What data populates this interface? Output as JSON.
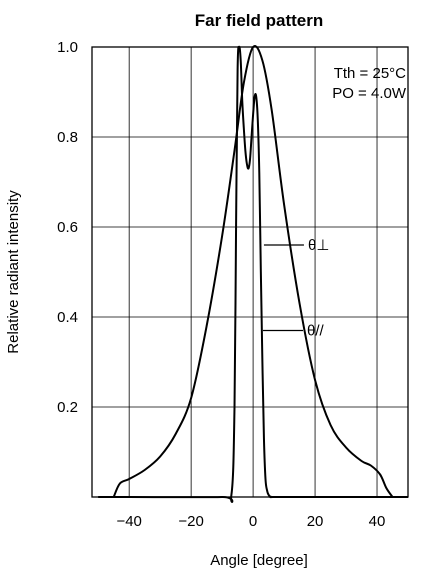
{
  "chart_data": {
    "type": "line",
    "title": "Far field pattern",
    "xlabel": "Angle [degree]",
    "ylabel": "Relative radiant intensity",
    "xlim": [
      -52,
      50
    ],
    "ylim": [
      0,
      1.0
    ],
    "xticks": [
      -40,
      -20,
      0,
      20,
      40
    ],
    "xtick_labels": [
      "−40",
      "−20",
      "0",
      "20",
      "40"
    ],
    "yticks": [
      0.2,
      0.4,
      0.6,
      0.8,
      1.0
    ],
    "ytick_labels": [
      "0.2",
      "0.4",
      "0.6",
      "0.8",
      "1.0"
    ],
    "grid": true,
    "annotations": [
      "Tth = 25°C",
      "PO = 4.0W"
    ],
    "series": [
      {
        "name": "θ⊥",
        "label_at": {
          "x": 3.5,
          "y": 0.56
        },
        "x": [
          -45,
          -43,
          -40,
          -35,
          -30,
          -25,
          -20,
          -15,
          -10,
          -6,
          -3,
          0,
          3,
          6,
          10,
          15,
          20,
          25,
          30,
          35,
          38,
          41,
          43,
          45
        ],
        "y": [
          0.0,
          0.03,
          0.04,
          0.06,
          0.09,
          0.14,
          0.22,
          0.38,
          0.58,
          0.77,
          0.92,
          1.0,
          0.97,
          0.86,
          0.65,
          0.43,
          0.26,
          0.16,
          0.11,
          0.08,
          0.07,
          0.05,
          0.02,
          0.0
        ]
      },
      {
        "name": "θ//",
        "label_at": {
          "x": 3.2,
          "y": 0.37
        },
        "x": [
          -50,
          -40,
          -10,
          -7,
          -6,
          -5.5,
          -5,
          -4.5,
          -4,
          -3.5,
          -3,
          -2.5,
          -2,
          -1.5,
          -1,
          -0.5,
          0,
          0.5,
          1,
          1.5,
          2,
          2.5,
          3,
          3.5,
          4,
          4.5,
          5,
          6,
          10,
          50
        ],
        "y": [
          0.0,
          0.0,
          0.0,
          0.005,
          0.2,
          0.6,
          0.95,
          1.0,
          0.97,
          0.88,
          0.82,
          0.77,
          0.74,
          0.73,
          0.75,
          0.8,
          0.85,
          0.89,
          0.89,
          0.84,
          0.72,
          0.5,
          0.3,
          0.13,
          0.04,
          0.015,
          0.005,
          0.0,
          0.0,
          0.0
        ]
      }
    ]
  }
}
